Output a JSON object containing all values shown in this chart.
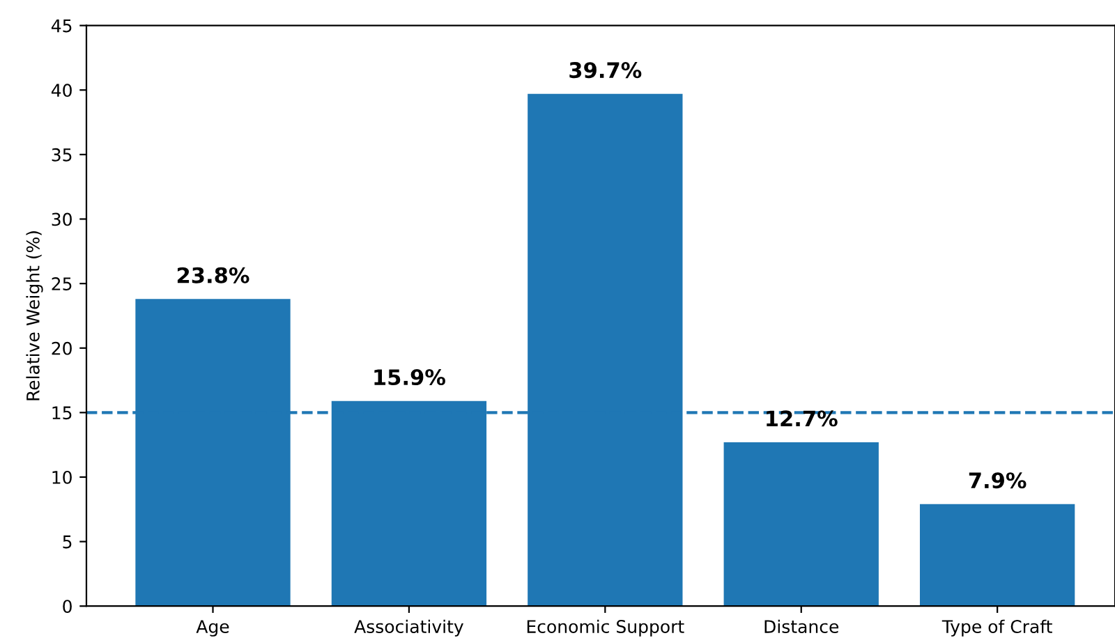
{
  "chart_data": {
    "type": "bar",
    "ylabel": "Relative Weight (%)",
    "categories": [
      "Age",
      "Associativity",
      "Economic Support",
      "Distance",
      "Type of Craft"
    ],
    "values": [
      23.8,
      15.9,
      39.7,
      12.7,
      7.9
    ],
    "value_labels": [
      "23.8%",
      "15.9%",
      "39.7%",
      "12.7%",
      "7.9%"
    ],
    "color": "#1f77b4",
    "ylim": [
      0,
      45
    ],
    "yticks": [
      0,
      5,
      10,
      15,
      20,
      25,
      30,
      35,
      40,
      45
    ],
    "ref_lines": [
      {
        "axis": "y",
        "value": 15,
        "color": "#1f77b4",
        "line_style": "dashed"
      }
    ],
    "grid": false,
    "legend": false
  }
}
